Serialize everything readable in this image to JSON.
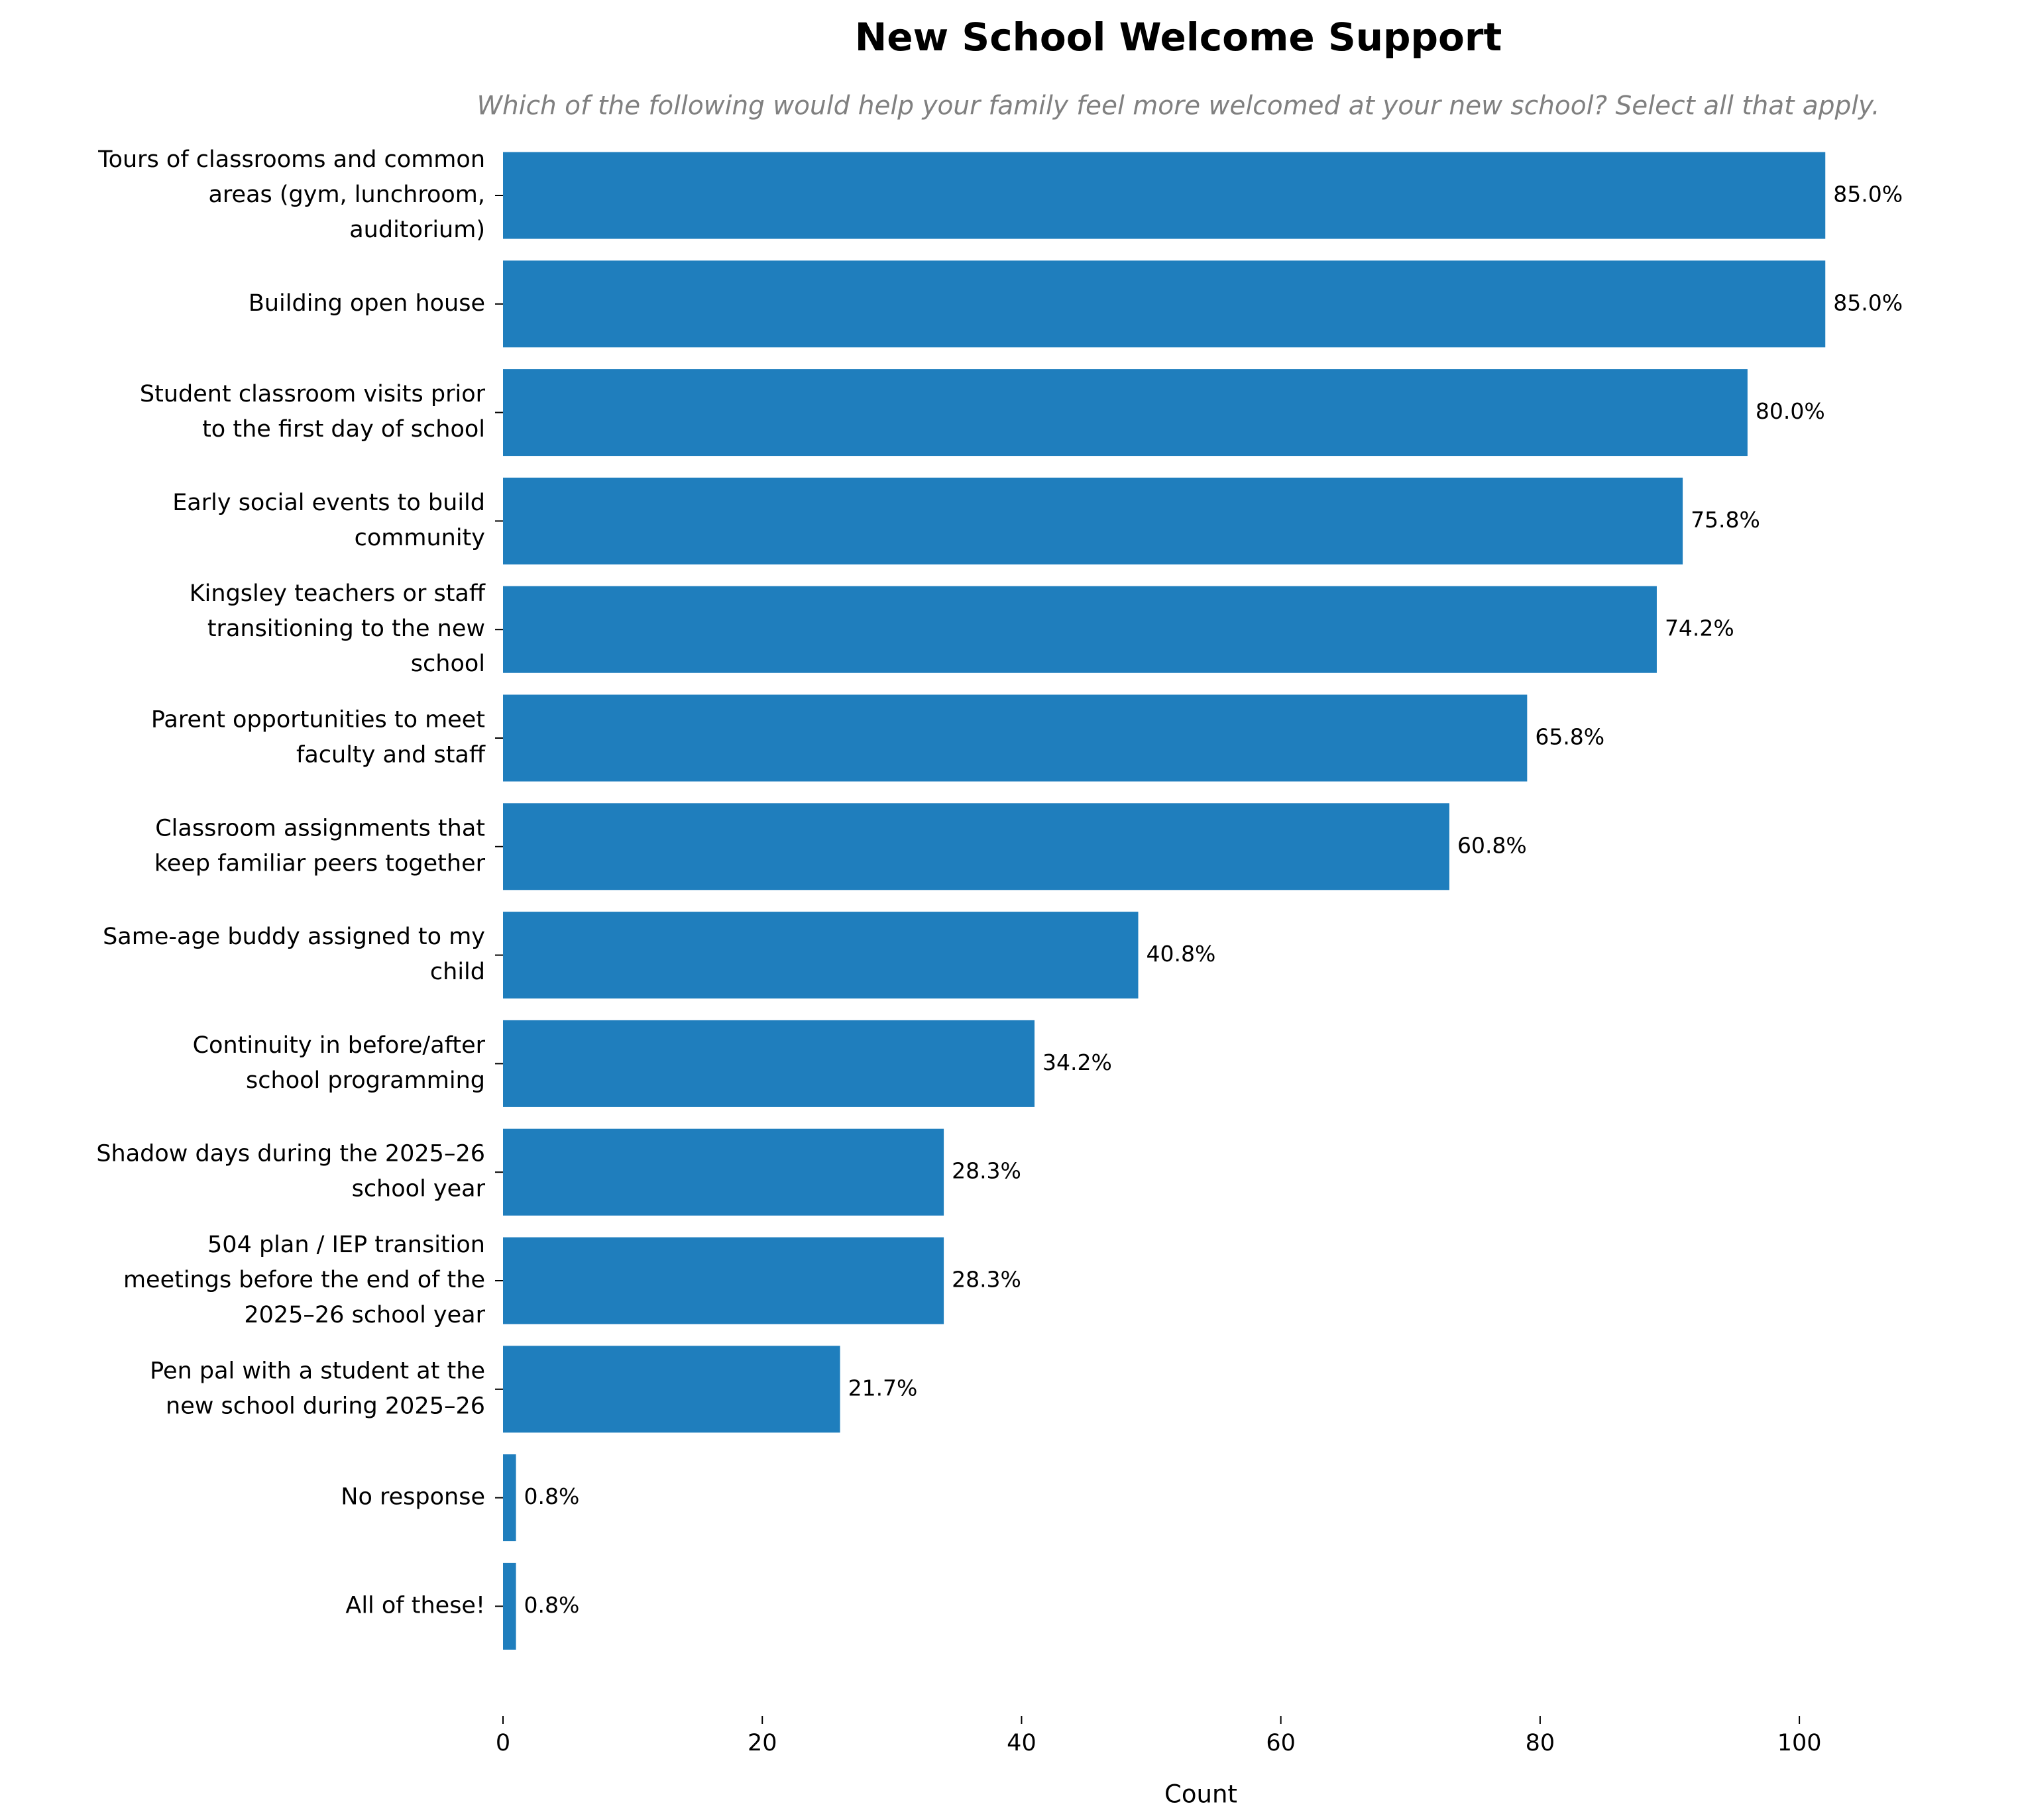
{
  "chart_data": {
    "type": "barh",
    "title": "New School Welcome Support",
    "subtitle": "Which of the following would help your family feel more welcomed at your new school? Select all that apply.",
    "x_label": "Count",
    "categories": [
      "Tours of classrooms and common\nareas (gym, lunchroom,\nauditorium)",
      "Building open house",
      "Student classroom visits prior\nto the first day of school",
      "Early social events to build\ncommunity",
      "Kingsley teachers or staff\ntransitioning to the new\nschool",
      "Parent opportunities to meet\nfaculty and staff",
      "Classroom assignments that\nkeep familiar peers together",
      "Same-age buddy assigned to my\nchild",
      "Continuity in before/after\nschool programming",
      "Shadow days during the 2025–26\nschool year",
      "504 plan / IEP transition\nmeetings before the end of the\n2025–26 school year",
      "Pen pal with a student at the\nnew school during 2025–26",
      "No response",
      "All of these!"
    ],
    "values": [
      102,
      102,
      96,
      91,
      89,
      79,
      73,
      49,
      41,
      34,
      34,
      26,
      1,
      1
    ],
    "percent_labels": [
      "85.0%",
      "85.0%",
      "80.0%",
      "75.8%",
      "74.2%",
      "65.8%",
      "60.8%",
      "40.8%",
      "34.2%",
      "28.3%",
      "28.3%",
      "21.7%",
      "0.8%",
      "0.8%"
    ],
    "color": "#1f7ebd",
    "xlim": [
      0,
      107.1
    ],
    "xticks": [
      0,
      20,
      40,
      60,
      80,
      100
    ],
    "grid": false
  }
}
